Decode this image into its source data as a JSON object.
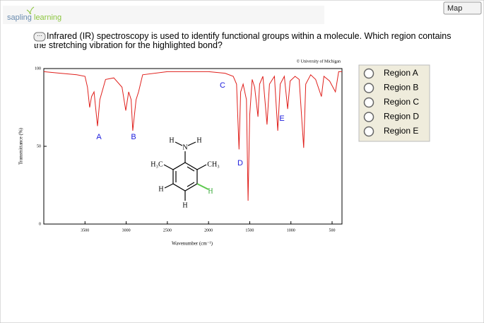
{
  "header": {
    "logo_word1": "sapling",
    "logo_word2": "learning",
    "map_button": "Map"
  },
  "question": {
    "text": "Infrared (IR) spectroscopy is used to identify functional groups within a molecule. Which region contains the stretching vibration for the highlighted bond?"
  },
  "chart_data": {
    "type": "line",
    "source": "© University of Michigan",
    "x_label": "Wavenumber (cm⁻¹)",
    "y_label": "Transmittance (%)",
    "color": "#e0201c",
    "xlim": [
      4000,
      380
    ],
    "ylim": [
      0,
      100
    ],
    "xticks": [
      3500,
      3000,
      2500,
      2000,
      1500,
      1000,
      500
    ],
    "yticks": [
      0,
      50,
      100
    ],
    "x": [
      4000,
      3800,
      3600,
      3500,
      3470,
      3443,
      3420,
      3390,
      3348,
      3320,
      3250,
      3150,
      3050,
      3005,
      2970,
      2940,
      2920,
      2880,
      2850,
      2800,
      2500,
      2200,
      2000,
      1800,
      1700,
      1660,
      1630,
      1610,
      1580,
      1540,
      1520,
      1500,
      1470,
      1440,
      1400,
      1380,
      1340,
      1290,
      1260,
      1200,
      1160,
      1130,
      1080,
      1040,
      1010,
      950,
      900,
      845,
      820,
      760,
      700,
      630,
      600,
      530,
      460,
      420,
      380
    ],
    "values": [
      98,
      97,
      96,
      95,
      88,
      75,
      82,
      85,
      63,
      80,
      93,
      94,
      88,
      73,
      85,
      80,
      60,
      80,
      85,
      96,
      98,
      98,
      98,
      97,
      95,
      90,
      48,
      85,
      90,
      80,
      15,
      70,
      93,
      88,
      69,
      90,
      95,
      64,
      90,
      95,
      60,
      90,
      95,
      74,
      92,
      95,
      93,
      49,
      90,
      96,
      93,
      82,
      95,
      92,
      85,
      98,
      98
    ],
    "annotations": [
      "A",
      "B",
      "C",
      "D",
      "E"
    ]
  },
  "molecule": {
    "labels": [
      "H",
      "N",
      "H",
      "H₃C",
      "CH₃",
      "H",
      "H",
      "H"
    ]
  },
  "options": [
    "Region A",
    "Region B",
    "Region C",
    "Region D",
    "Region E"
  ]
}
